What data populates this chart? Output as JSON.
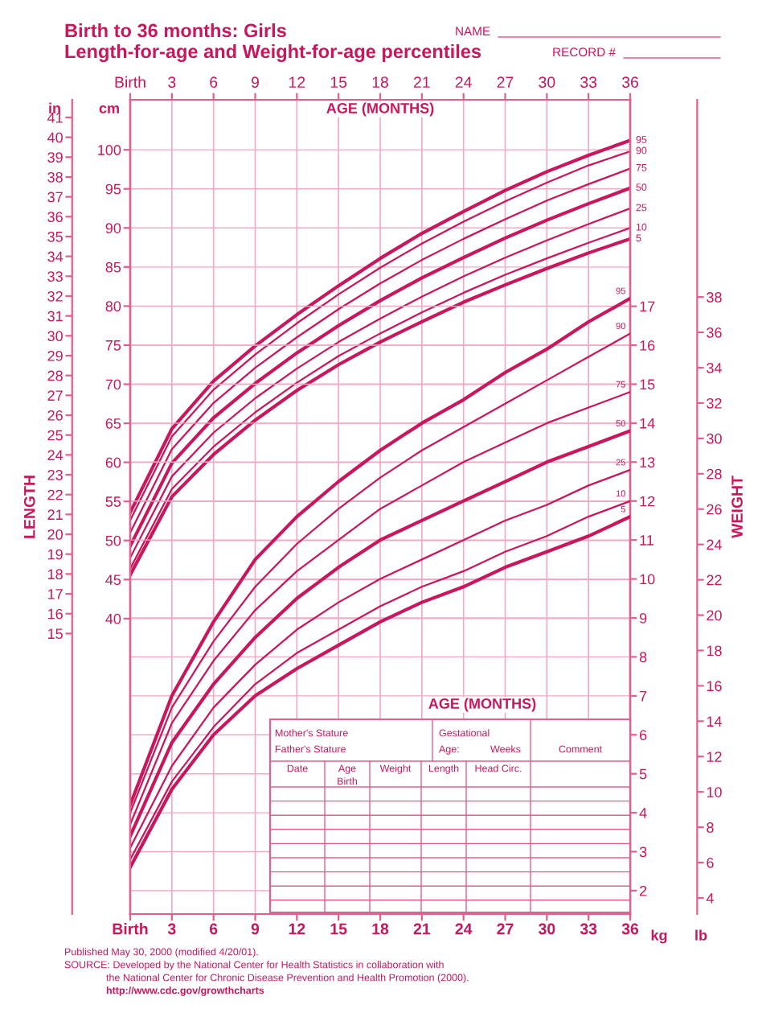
{
  "chart_data": [
    {
      "type": "line",
      "title": "Birth to 36 months: Girls",
      "subtitle": "Length-for-age and Weight-for-age percentiles",
      "xlabel": "AGE (MONTHS)",
      "y2label": "LENGTH",
      "x": [
        0,
        3,
        6,
        9,
        12,
        15,
        18,
        21,
        24,
        27,
        30,
        33,
        36
      ],
      "xlim": [
        0,
        36
      ],
      "xticks": [
        {
          "value": 0,
          "label": "Birth"
        },
        3,
        6,
        9,
        12,
        15,
        18,
        21,
        24,
        27,
        30,
        33,
        36
      ],
      "ylim": [
        2.2,
        106.4
      ],
      "yticks": [
        40,
        45,
        50,
        55,
        60,
        65,
        70,
        75,
        80,
        85,
        90,
        95,
        100
      ],
      "y2lim": [
        0.87,
        41.89
      ],
      "y2ticks": [
        15,
        16,
        17,
        18,
        19,
        20,
        21,
        22,
        23,
        24,
        25,
        26,
        27,
        28,
        29,
        30,
        31,
        32,
        33,
        34,
        35,
        36,
        37,
        38,
        39,
        40,
        41
      ],
      "grid": true,
      "marker": "none",
      "line_style": "solid",
      "series": [
        {
          "name": "95",
          "color": "#c8175d",
          "values": [
            53.6,
            64.3,
            70.4,
            74.9,
            78.9,
            82.6,
            86.1,
            89.3,
            92.1,
            94.8,
            97.2,
            99.3,
            101.2
          ]
        },
        {
          "name": "90",
          "color": "#c8175d",
          "values": [
            52.6,
            63.3,
            69.3,
            73.8,
            77.8,
            81.5,
            84.9,
            88.0,
            90.8,
            93.4,
            95.8,
            98.0,
            99.8
          ]
        },
        {
          "name": "75",
          "color": "#c8175d",
          "values": [
            51.0,
            61.7,
            67.6,
            72.1,
            76.0,
            79.6,
            82.9,
            85.9,
            88.6,
            91.1,
            93.5,
            95.6,
            97.6
          ]
        },
        {
          "name": "50",
          "color": "#c8175d",
          "values": [
            49.3,
            59.9,
            65.7,
            70.1,
            74.0,
            77.5,
            80.7,
            83.6,
            86.2,
            88.7,
            91.0,
            93.1,
            95.1
          ]
        },
        {
          "name": "25",
          "color": "#c8175d",
          "values": [
            47.8,
            58.2,
            63.8,
            68.2,
            72.0,
            75.4,
            78.4,
            81.2,
            83.8,
            86.2,
            88.4,
            90.5,
            92.5
          ]
        },
        {
          "name": "10",
          "color": "#c8175d",
          "values": [
            46.4,
            56.6,
            62.0,
            66.4,
            70.2,
            73.6,
            76.5,
            79.2,
            81.7,
            84.0,
            86.1,
            88.1,
            90.0
          ]
        },
        {
          "name": "5",
          "color": "#c8175d",
          "values": [
            45.6,
            55.6,
            61.0,
            65.4,
            69.2,
            72.5,
            75.4,
            78.0,
            80.5,
            82.7,
            84.8,
            86.8,
            88.6
          ]
        }
      ],
      "annotations": [
        "NAME",
        "RECORD #",
        "Mother's Stature",
        "Father's Stature",
        "Gestational",
        "Age:",
        "Weeks",
        "Comment",
        "Date",
        "Age",
        "Weight",
        "Length",
        "Head Circ.",
        "Birth",
        "Published May 30, 2000 (modified 4/20/01).",
        "SOURCE: Developed by the National Center for Health Statistics in collaboration with",
        "the National Center for Chronic Disease Prevention and Health Promotion (2000).",
        "http://www.cdc.gov/growthcharts",
        "cm",
        "in"
      ]
    },
    {
      "type": "line",
      "xlabel": "AGE (MONTHS)",
      "y2label": "WEIGHT",
      "x": [
        0,
        3,
        6,
        9,
        12,
        15,
        18,
        21,
        24,
        27,
        30,
        33,
        36
      ],
      "xlim": [
        0,
        36
      ],
      "xticks": [
        {
          "value": 0,
          "label": "Birth"
        },
        3,
        6,
        9,
        12,
        15,
        18,
        21,
        24,
        27,
        30,
        33,
        36
      ],
      "ylim": [
        1.4,
        22.3
      ],
      "yticks": [
        2,
        3,
        4,
        5,
        6,
        7,
        8,
        9,
        10,
        11,
        12,
        13,
        14,
        15,
        16,
        17
      ],
      "y2lim": [
        3.09,
        49.16
      ],
      "y2ticks": [
        4,
        6,
        8,
        10,
        12,
        14,
        16,
        18,
        20,
        22,
        24,
        26,
        28,
        30,
        32,
        34,
        36,
        38
      ],
      "grid": "y",
      "marker": "none",
      "line_style": "solid",
      "series": [
        {
          "name": "95",
          "color": "#c8175d",
          "values": [
            4.2,
            7.0,
            8.9,
            10.5,
            11.6,
            12.5,
            13.3,
            14.0,
            14.6,
            15.3,
            15.9,
            16.6,
            17.2
          ]
        },
        {
          "name": "90",
          "color": "#c8175d",
          "values": [
            4.0,
            6.7,
            8.4,
            9.8,
            10.9,
            11.8,
            12.6,
            13.3,
            13.9,
            14.5,
            15.1,
            15.7,
            16.3
          ]
        },
        {
          "name": "75",
          "color": "#c8175d",
          "values": [
            3.7,
            6.3,
            7.9,
            9.2,
            10.2,
            11.0,
            11.8,
            12.4,
            13.0,
            13.5,
            14.0,
            14.4,
            14.8
          ]
        },
        {
          "name": "50",
          "color": "#c8175d",
          "values": [
            3.4,
            5.8,
            7.3,
            8.5,
            9.5,
            10.3,
            11.0,
            11.5,
            12.0,
            12.5,
            13.0,
            13.4,
            13.8
          ]
        },
        {
          "name": "25",
          "color": "#c8175d",
          "values": [
            3.1,
            5.2,
            6.7,
            7.8,
            8.7,
            9.4,
            10.0,
            10.5,
            11.0,
            11.5,
            11.9,
            12.4,
            12.8
          ]
        },
        {
          "name": "10",
          "color": "#c8175d",
          "values": [
            2.8,
            4.8,
            6.2,
            7.3,
            8.1,
            8.7,
            9.3,
            9.8,
            10.2,
            10.7,
            11.1,
            11.6,
            12.0
          ]
        },
        {
          "name": "5",
          "color": "#c8175d",
          "values": [
            2.6,
            4.6,
            6.0,
            7.0,
            7.7,
            8.3,
            8.9,
            9.4,
            9.8,
            10.3,
            10.7,
            11.1,
            11.6
          ]
        }
      ],
      "annotations": [
        "kg",
        "lb"
      ]
    }
  ]
}
